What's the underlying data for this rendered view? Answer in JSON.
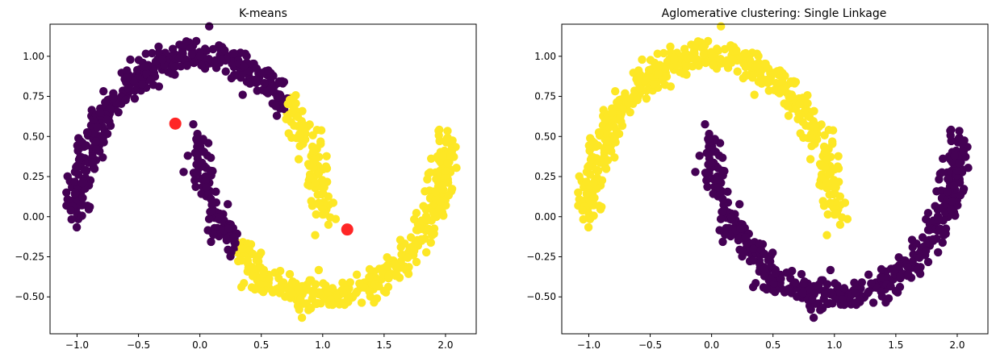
{
  "colors": {
    "cluster_0": "#440154",
    "cluster_1": "#fde725",
    "centroid": "#ff0000",
    "axis": "#000000"
  },
  "chart_data": [
    {
      "type": "scatter",
      "title": "K-means",
      "xlim": [
        -1.22,
        2.25
      ],
      "ylim": [
        -0.73,
        1.2
      ],
      "xticks": [
        -1.0,
        -0.5,
        0.0,
        0.5,
        1.0,
        1.5,
        2.0
      ],
      "xtick_labels": [
        "−1.0",
        "−0.5",
        "0.0",
        "0.5",
        "1.0",
        "1.5",
        "2.0"
      ],
      "yticks": [
        -0.5,
        -0.25,
        0.0,
        0.25,
        0.5,
        0.75,
        1.0
      ],
      "ytick_labels": [
        "−0.50",
        "−0.25",
        "0.00",
        "0.25",
        "0.50",
        "0.75",
        "1.00"
      ],
      "grid": false,
      "series": [
        {
          "label": 0,
          "color": "#440154",
          "x_range": [
            -1.1,
            0.75
          ],
          "description_shape": "upper moon arc plus left tail of lower moon"
        },
        {
          "label": 1,
          "color": "#fde725",
          "x_range": [
            0.25,
            2.1
          ],
          "description_shape": "right tail of upper moon plus lower moon"
        }
      ],
      "centroids": [
        {
          "x": -0.2,
          "y": 0.58
        },
        {
          "x": 1.2,
          "y": -0.08
        }
      ]
    },
    {
      "type": "scatter",
      "title": "Aglomerative clustering: Single Linkage",
      "xlim": [
        -1.22,
        2.25
      ],
      "ylim": [
        -0.73,
        1.2
      ],
      "xticks": [
        -1.0,
        -0.5,
        0.0,
        0.5,
        1.0,
        1.5,
        2.0
      ],
      "xtick_labels": [
        "−1.0",
        "−0.5",
        "0.0",
        "0.5",
        "1.0",
        "1.5",
        "2.0"
      ],
      "yticks": [
        -0.5,
        -0.25,
        0.0,
        0.25,
        0.5,
        0.75,
        1.0
      ],
      "ytick_labels": [
        "−0.50",
        "−0.25",
        "0.00",
        "0.25",
        "0.50",
        "0.75",
        "1.00"
      ],
      "grid": false,
      "series": [
        {
          "label": 0,
          "color": "#440154",
          "shape": "lower moon"
        },
        {
          "label": 1,
          "color": "#fde725",
          "shape": "upper moon"
        }
      ]
    }
  ]
}
